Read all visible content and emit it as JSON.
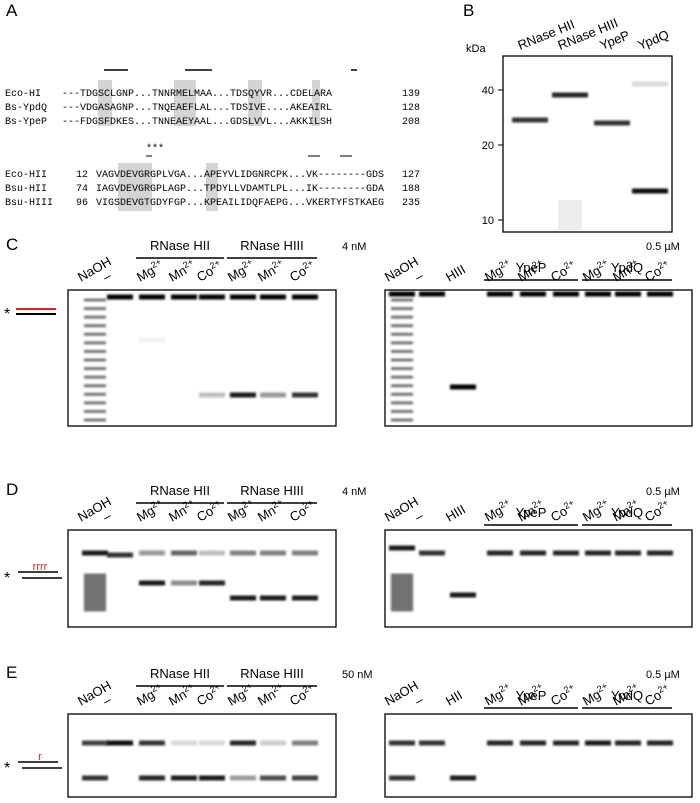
{
  "panel_labels": [
    "A",
    "B",
    "C",
    "D",
    "E"
  ],
  "alignment": {
    "block1": [
      {
        "name": "Eco-HI",
        "seq": "---TDGSCLGNP...TNNRMELMAA...TDSQYVR...CDELARA",
        "end": "139"
      },
      {
        "name": "Bs-YpdQ",
        "seq": "---VDGASAGNP...TNQEAEFLAL...TDSIVE....AKEAIRL",
        "end": "128"
      },
      {
        "name": "Bs-YpeP",
        "seq": "---FDGSFDKES...TNNEAEYAAL...GDSLVVL...AKKILSH",
        "end": "208"
      }
    ],
    "stars": "***",
    "block2": [
      {
        "name": "Eco-HII",
        "start": "12",
        "seq": "VAGVDEVGRGPLVGA...APEYVLIDGNRCPK...VK--------GDS",
        "end": "127"
      },
      {
        "name": "Bsu-HII",
        "start": "74",
        "seq": "IAGVDEVGRGPLAGP...TPDYLLVDAMTLPL...IK--------GDA",
        "end": "188"
      },
      {
        "name": "Bsu-HIII",
        "start": "96",
        "seq": "VIGSDEVGTGDYFGP...KPEAILIDQFAEPG...VKERTYFSTKAEG",
        "end": "235"
      }
    ]
  },
  "sds_gel": {
    "unit": "kDa",
    "lanes": [
      "RNase HII",
      "RNase HIII",
      "YpeP",
      "YpdQ"
    ],
    "markers": [
      "40",
      "20",
      "10"
    ]
  },
  "nuclease_gels": [
    {
      "substrate_label": "*",
      "left": {
        "single_lanes": [
          "NaOH",
          "–"
        ],
        "concentration": "4 nM",
        "groups": [
          {
            "name": "RNase HII",
            "ions": [
              {
                "symbol": "Mg",
                "charge": "2+"
              },
              {
                "symbol": "Mn",
                "charge": "2+"
              },
              {
                "symbol": "Co",
                "charge": "2+"
              }
            ]
          },
          {
            "name": "RNase HIII",
            "ions": [
              {
                "symbol": "Mg",
                "charge": "2+"
              },
              {
                "symbol": "Mn",
                "charge": "2+"
              },
              {
                "symbol": "Co",
                "charge": "2+"
              }
            ]
          }
        ]
      },
      "right": {
        "single_lanes": [
          "NaOH",
          "–",
          "HIII"
        ],
        "concentration": "0.5 µM",
        "groups": [
          {
            "name": "YpeP",
            "ions": [
              {
                "symbol": "Mg",
                "charge": "2+"
              },
              {
                "symbol": "Mn",
                "charge": "2+"
              },
              {
                "symbol": "Co",
                "charge": "2+"
              }
            ]
          },
          {
            "name": "YpdQ",
            "ions": [
              {
                "symbol": "Mg",
                "charge": "2+"
              },
              {
                "symbol": "Mn",
                "charge": "2+"
              },
              {
                "symbol": "Co",
                "charge": "2+"
              }
            ]
          }
        ]
      }
    },
    {
      "substrate_label": "*",
      "ribo": "rrrr",
      "left": {
        "single_lanes": [
          "NaOH",
          "–"
        ],
        "concentration": "4 nM",
        "groups": [
          {
            "name": "RNase HII",
            "ions": [
              {
                "symbol": "Mg",
                "charge": "2+"
              },
              {
                "symbol": "Mn",
                "charge": "2+"
              },
              {
                "symbol": "Co",
                "charge": "2+"
              }
            ]
          },
          {
            "name": "RNase HIII",
            "ions": [
              {
                "symbol": "Mg",
                "charge": "2+"
              },
              {
                "symbol": "Mn",
                "charge": "2+"
              },
              {
                "symbol": "Co",
                "charge": "2+"
              }
            ]
          }
        ]
      },
      "right": {
        "single_lanes": [
          "NaOH",
          "–",
          "HIII"
        ],
        "concentration": "0.5 µM",
        "groups": [
          {
            "name": "YpeP",
            "ions": [
              {
                "symbol": "Mg",
                "charge": "2+"
              },
              {
                "symbol": "Mn",
                "charge": "2+"
              },
              {
                "symbol": "Co",
                "charge": "2+"
              }
            ]
          },
          {
            "name": "YpdQ",
            "ions": [
              {
                "symbol": "Mg",
                "charge": "2+"
              },
              {
                "symbol": "Mn",
                "charge": "2+"
              },
              {
                "symbol": "Co",
                "charge": "2+"
              }
            ]
          }
        ]
      }
    },
    {
      "substrate_label": "*",
      "ribo": "r",
      "left": {
        "single_lanes": [
          "NaOH",
          "–"
        ],
        "concentration": "50 nM",
        "groups": [
          {
            "name": "RNase HII",
            "ions": [
              {
                "symbol": "Mg",
                "charge": "2+"
              },
              {
                "symbol": "Mn",
                "charge": "2+"
              },
              {
                "symbol": "Co",
                "charge": "2+"
              }
            ]
          },
          {
            "name": "RNase HIII",
            "ions": [
              {
                "symbol": "Mg",
                "charge": "2+"
              },
              {
                "symbol": "Mn",
                "charge": "2+"
              },
              {
                "symbol": "Co",
                "charge": "2+"
              }
            ]
          }
        ]
      },
      "right": {
        "single_lanes": [
          "NaOH",
          "–",
          "HII"
        ],
        "concentration": "0.5 µM",
        "groups": [
          {
            "name": "YpeP",
            "ions": [
              {
                "symbol": "Mg",
                "charge": "2+"
              },
              {
                "symbol": "Mn",
                "charge": "2+"
              },
              {
                "symbol": "Co",
                "charge": "2+"
              }
            ]
          },
          {
            "name": "YpdQ",
            "ions": [
              {
                "symbol": "Mg",
                "charge": "2+"
              },
              {
                "symbol": "Mn",
                "charge": "2+"
              },
              {
                "symbol": "Co",
                "charge": "2+"
              }
            ]
          }
        ]
      }
    }
  ]
}
